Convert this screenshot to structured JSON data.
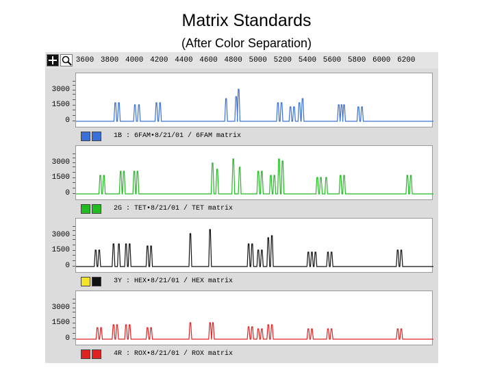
{
  "title": "Matrix Standards",
  "subtitle": "(After Color Separation)",
  "ruler": {
    "ticks": [
      "3600",
      "3800",
      "4000",
      "4200",
      "4400",
      "4600",
      "4800",
      "5000",
      "5200",
      "5400",
      "5600",
      "5800",
      "6000",
      "6200"
    ]
  },
  "yaxis": {
    "labels": [
      "3000",
      "1500",
      "0"
    ]
  },
  "panels": [
    {
      "label": "1B : 6FAM•8/21/01 / 6FAM matrix",
      "color": "#3a6fd8",
      "swatch_colors": [
        "#3a6fd8",
        "#3a6fd8"
      ],
      "peaks": [
        [
          0.11,
          0.45
        ],
        [
          0.12,
          0.45
        ],
        [
          0.165,
          0.4
        ],
        [
          0.176,
          0.4
        ],
        [
          0.225,
          0.45
        ],
        [
          0.235,
          0.45
        ],
        [
          0.42,
          0.55
        ],
        [
          0.448,
          0.6
        ],
        [
          0.455,
          0.78
        ],
        [
          0.565,
          0.45
        ],
        [
          0.575,
          0.45
        ],
        [
          0.6,
          0.35
        ],
        [
          0.61,
          0.35
        ],
        [
          0.625,
          0.45
        ],
        [
          0.634,
          0.55
        ],
        [
          0.735,
          0.4
        ],
        [
          0.743,
          0.4
        ],
        [
          0.75,
          0.4
        ],
        [
          0.79,
          0.35
        ],
        [
          0.8,
          0.35
        ]
      ]
    },
    {
      "label": "2G : TET•8/21/01 / TET matrix",
      "color": "#22bb22",
      "swatch_colors": [
        "#22bb22",
        "#22bb22"
      ],
      "peaks": [
        [
          0.068,
          0.45
        ],
        [
          0.078,
          0.45
        ],
        [
          0.125,
          0.55
        ],
        [
          0.134,
          0.55
        ],
        [
          0.163,
          0.55
        ],
        [
          0.172,
          0.55
        ],
        [
          0.382,
          0.75
        ],
        [
          0.395,
          0.6
        ],
        [
          0.44,
          0.85
        ],
        [
          0.458,
          0.65
        ],
        [
          0.51,
          0.55
        ],
        [
          0.52,
          0.55
        ],
        [
          0.545,
          0.45
        ],
        [
          0.555,
          0.45
        ],
        [
          0.568,
          0.85
        ],
        [
          0.578,
          0.8
        ],
        [
          0.675,
          0.4
        ],
        [
          0.685,
          0.4
        ],
        [
          0.7,
          0.4
        ],
        [
          0.74,
          0.45
        ],
        [
          0.75,
          0.45
        ],
        [
          0.927,
          0.45
        ],
        [
          0.937,
          0.45
        ]
      ]
    },
    {
      "label": "3Y : HEX•8/21/01 / HEX matrix",
      "color": "#111111",
      "swatch_colors": [
        "#f1e32a",
        "#111111"
      ],
      "peaks": [
        [
          0.055,
          0.4
        ],
        [
          0.065,
          0.4
        ],
        [
          0.105,
          0.55
        ],
        [
          0.12,
          0.55
        ],
        [
          0.14,
          0.55
        ],
        [
          0.15,
          0.55
        ],
        [
          0.2,
          0.5
        ],
        [
          0.21,
          0.5
        ],
        [
          0.32,
          0.8
        ],
        [
          0.375,
          0.9
        ],
        [
          0.483,
          0.55
        ],
        [
          0.493,
          0.55
        ],
        [
          0.51,
          0.4
        ],
        [
          0.52,
          0.4
        ],
        [
          0.538,
          0.7
        ],
        [
          0.548,
          0.75
        ],
        [
          0.65,
          0.35
        ],
        [
          0.66,
          0.35
        ],
        [
          0.67,
          0.35
        ],
        [
          0.705,
          0.35
        ],
        [
          0.715,
          0.35
        ],
        [
          0.9,
          0.4
        ],
        [
          0.91,
          0.4
        ]
      ]
    },
    {
      "label": "4R : ROX•8/21/01 / ROX matrix",
      "color": "#dd2222",
      "swatch_colors": [
        "#dd2222",
        "#dd2222"
      ],
      "peaks": [
        [
          0.06,
          0.28
        ],
        [
          0.07,
          0.28
        ],
        [
          0.105,
          0.35
        ],
        [
          0.115,
          0.35
        ],
        [
          0.14,
          0.35
        ],
        [
          0.15,
          0.35
        ],
        [
          0.2,
          0.28
        ],
        [
          0.21,
          0.28
        ],
        [
          0.32,
          0.4
        ],
        [
          0.375,
          0.4
        ],
        [
          0.383,
          0.4
        ],
        [
          0.483,
          0.3
        ],
        [
          0.493,
          0.3
        ],
        [
          0.51,
          0.25
        ],
        [
          0.52,
          0.25
        ],
        [
          0.538,
          0.35
        ],
        [
          0.548,
          0.35
        ],
        [
          0.65,
          0.25
        ],
        [
          0.66,
          0.25
        ],
        [
          0.705,
          0.25
        ],
        [
          0.715,
          0.25
        ],
        [
          0.9,
          0.25
        ],
        [
          0.91,
          0.25
        ]
      ]
    }
  ]
}
